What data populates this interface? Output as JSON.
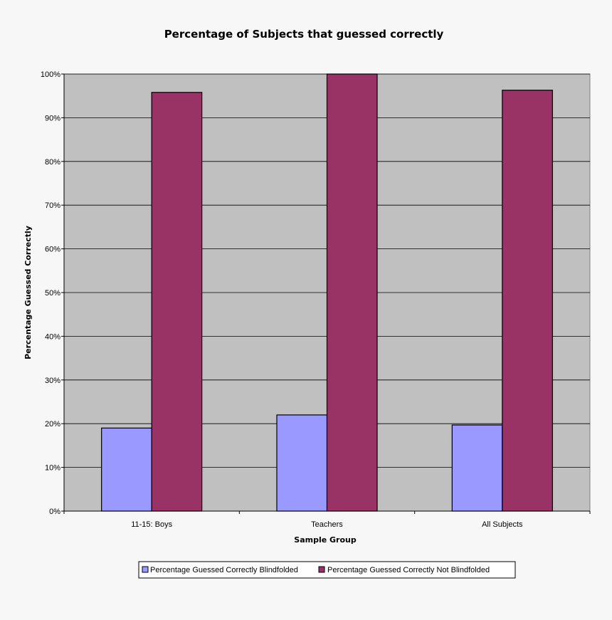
{
  "chart_data": {
    "type": "bar",
    "title": "Percentage of Subjects that guessed correctly",
    "xlabel": "Sample Group",
    "ylabel": "Percentage Guessed Correctly",
    "categories": [
      "11-15: Boys",
      "Teachers",
      "All Subjects"
    ],
    "series": [
      {
        "name": "Percentage Guessed Correctly Blindfolded",
        "values": [
          19,
          22,
          19.7
        ],
        "color": "#9999ff"
      },
      {
        "name": "Percentage Guessed Correctly Not Blindfolded",
        "values": [
          95.8,
          100,
          96.3
        ],
        "color": "#993366"
      }
    ],
    "ylim": [
      0,
      100
    ],
    "yticks": [
      "0%",
      "10%",
      "20%",
      "30%",
      "40%",
      "50%",
      "60%",
      "70%",
      "80%",
      "90%",
      "100%"
    ],
    "grid": true,
    "plot_background": "#c0c0c0",
    "legend_position": "bottom"
  }
}
